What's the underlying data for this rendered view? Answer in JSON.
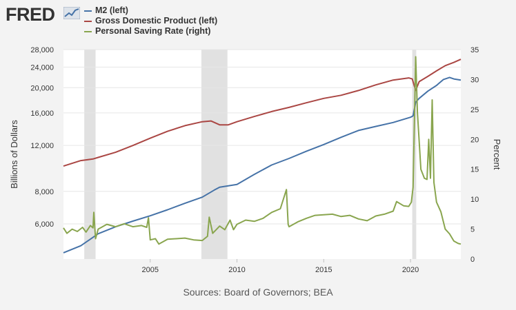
{
  "header": {
    "logo_text": "FRED",
    "logo_icon": "fred-chart-icon"
  },
  "colors": {
    "m2": "#4572a7",
    "gdp": "#aa4643",
    "psr": "#89a54e",
    "recession": "#e1e1e1",
    "plot_bg": "#ffffff",
    "page_bg": "#f3f3f3"
  },
  "legend": [
    {
      "label": "M2 (left)",
      "color": "#4572a7"
    },
    {
      "label": "Gross Domestic Product (left)",
      "color": "#aa4643"
    },
    {
      "label": "Personal Saving Rate (right)",
      "color": "#89a54e"
    }
  ],
  "source": "Sources: Board of Governors; BEA",
  "chart_data": {
    "type": "line",
    "x_range": [
      2000.0,
      2022.9
    ],
    "x_ticks": [
      "2005",
      "2010",
      "2015",
      "2020"
    ],
    "ylabel_left": "Billions of Dollars",
    "ylabel_right": "Percent",
    "left_axis": {
      "scale": "log",
      "range": [
        4400,
        28000
      ],
      "ticks": [
        "28,000",
        "24,000",
        "20,000",
        "16,000",
        "12,000",
        "8,000",
        "6,000"
      ]
    },
    "right_axis": {
      "scale": "linear",
      "range": [
        0,
        35
      ],
      "ticks": [
        "0",
        "5",
        "10",
        "15",
        "20",
        "25",
        "30",
        "35"
      ]
    },
    "recessions": [
      [
        2001.2,
        2001.85
      ],
      [
        2007.95,
        2009.45
      ],
      [
        2020.1,
        2020.33
      ]
    ],
    "series": [
      {
        "name": "M2 (left)",
        "axis": "left",
        "points": [
          [
            2000.0,
            4650
          ],
          [
            2001.0,
            4950
          ],
          [
            2002.0,
            5500
          ],
          [
            2003.0,
            5850
          ],
          [
            2004.0,
            6150
          ],
          [
            2005.0,
            6450
          ],
          [
            2006.0,
            6800
          ],
          [
            2007.0,
            7200
          ],
          [
            2008.0,
            7600
          ],
          [
            2008.7,
            8100
          ],
          [
            2009.0,
            8300
          ],
          [
            2010.0,
            8500
          ],
          [
            2011.0,
            9300
          ],
          [
            2012.0,
            10100
          ],
          [
            2013.0,
            10700
          ],
          [
            2014.0,
            11400
          ],
          [
            2015.0,
            12100
          ],
          [
            2016.0,
            12900
          ],
          [
            2017.0,
            13700
          ],
          [
            2018.0,
            14200
          ],
          [
            2019.0,
            14700
          ],
          [
            2020.0,
            15400
          ],
          [
            2020.15,
            15600
          ],
          [
            2020.3,
            17600
          ],
          [
            2020.5,
            18200
          ],
          [
            2021.0,
            19400
          ],
          [
            2021.5,
            20400
          ],
          [
            2021.9,
            21500
          ],
          [
            2022.25,
            21900
          ],
          [
            2022.5,
            21600
          ],
          [
            2022.9,
            21400
          ]
        ]
      },
      {
        "name": "Gross Domestic Product (left)",
        "axis": "left",
        "points": [
          [
            2000.0,
            10000
          ],
          [
            2001.0,
            10500
          ],
          [
            2001.7,
            10650
          ],
          [
            2002.0,
            10800
          ],
          [
            2003.0,
            11300
          ],
          [
            2004.0,
            12000
          ],
          [
            2005.0,
            12800
          ],
          [
            2006.0,
            13600
          ],
          [
            2007.0,
            14300
          ],
          [
            2008.0,
            14800
          ],
          [
            2008.5,
            14900
          ],
          [
            2009.0,
            14400
          ],
          [
            2009.5,
            14400
          ],
          [
            2010.0,
            14800
          ],
          [
            2011.0,
            15500
          ],
          [
            2012.0,
            16200
          ],
          [
            2013.0,
            16800
          ],
          [
            2014.0,
            17500
          ],
          [
            2015.0,
            18200
          ],
          [
            2016.0,
            18700
          ],
          [
            2017.0,
            19500
          ],
          [
            2018.0,
            20500
          ],
          [
            2019.0,
            21400
          ],
          [
            2019.9,
            21800
          ],
          [
            2020.1,
            21600
          ],
          [
            2020.3,
            19500
          ],
          [
            2020.5,
            21100
          ],
          [
            2021.0,
            22100
          ],
          [
            2021.5,
            23200
          ],
          [
            2022.0,
            24300
          ],
          [
            2022.5,
            25000
          ],
          [
            2022.9,
            25700
          ]
        ]
      },
      {
        "name": "Personal Saving Rate (right)",
        "axis": "right",
        "points": [
          [
            2000.0,
            5.2
          ],
          [
            2000.2,
            4.3
          ],
          [
            2000.5,
            5.0
          ],
          [
            2000.8,
            4.6
          ],
          [
            2001.1,
            5.3
          ],
          [
            2001.3,
            4.5
          ],
          [
            2001.55,
            5.6
          ],
          [
            2001.7,
            5.2
          ],
          [
            2001.75,
            7.8
          ],
          [
            2001.85,
            3.4
          ],
          [
            2002.0,
            5.0
          ],
          [
            2002.5,
            5.8
          ],
          [
            2003.0,
            5.4
          ],
          [
            2003.5,
            5.9
          ],
          [
            2004.0,
            5.4
          ],
          [
            2004.5,
            5.6
          ],
          [
            2004.8,
            5.3
          ],
          [
            2004.9,
            6.9
          ],
          [
            2005.0,
            3.2
          ],
          [
            2005.3,
            3.4
          ],
          [
            2005.5,
            2.5
          ],
          [
            2006.0,
            3.3
          ],
          [
            2006.5,
            3.4
          ],
          [
            2007.0,
            3.5
          ],
          [
            2007.5,
            3.2
          ],
          [
            2008.0,
            3.1
          ],
          [
            2008.3,
            3.8
          ],
          [
            2008.4,
            7.0
          ],
          [
            2008.6,
            4.3
          ],
          [
            2009.0,
            5.5
          ],
          [
            2009.3,
            4.9
          ],
          [
            2009.6,
            6.5
          ],
          [
            2009.8,
            4.9
          ],
          [
            2010.0,
            5.8
          ],
          [
            2010.5,
            6.5
          ],
          [
            2011.0,
            6.3
          ],
          [
            2011.5,
            6.8
          ],
          [
            2012.0,
            7.8
          ],
          [
            2012.5,
            8.4
          ],
          [
            2012.85,
            11.6
          ],
          [
            2012.95,
            5.8
          ],
          [
            2013.0,
            5.4
          ],
          [
            2013.5,
            6.2
          ],
          [
            2014.0,
            6.8
          ],
          [
            2014.5,
            7.3
          ],
          [
            2015.0,
            7.4
          ],
          [
            2015.5,
            7.5
          ],
          [
            2016.0,
            7.1
          ],
          [
            2016.5,
            7.3
          ],
          [
            2017.0,
            6.7
          ],
          [
            2017.5,
            6.4
          ],
          [
            2018.0,
            7.2
          ],
          [
            2018.5,
            7.5
          ],
          [
            2019.0,
            8.0
          ],
          [
            2019.2,
            9.6
          ],
          [
            2019.6,
            8.9
          ],
          [
            2019.9,
            8.8
          ],
          [
            2020.05,
            9.5
          ],
          [
            2020.15,
            12.0
          ],
          [
            2020.3,
            33.8
          ],
          [
            2020.4,
            24.5
          ],
          [
            2020.6,
            15.0
          ],
          [
            2020.8,
            13.5
          ],
          [
            2020.95,
            13.3
          ],
          [
            2021.05,
            20.0
          ],
          [
            2021.15,
            13.5
          ],
          [
            2021.25,
            26.6
          ],
          [
            2021.35,
            12.8
          ],
          [
            2021.5,
            9.5
          ],
          [
            2021.75,
            7.9
          ],
          [
            2022.0,
            5.0
          ],
          [
            2022.25,
            4.2
          ],
          [
            2022.5,
            3.0
          ],
          [
            2022.75,
            2.6
          ],
          [
            2022.9,
            2.5
          ]
        ]
      }
    ]
  }
}
